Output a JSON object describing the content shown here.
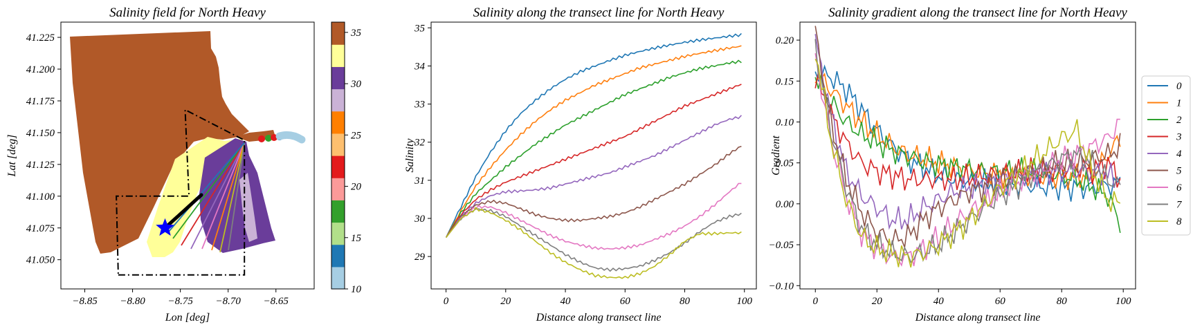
{
  "chart_data": [
    {
      "type": "scatter",
      "title": "Salinity field for North Heavy",
      "xlabel": "Lon [deg]",
      "ylabel": "Lat [deg]",
      "xlim": [
        -8.875,
        -8.61
      ],
      "ylim": [
        41.027,
        41.237
      ],
      "xticks": [
        "−8.85",
        "−8.80",
        "−8.75",
        "−8.70",
        "−8.65"
      ],
      "xtick_values": [
        -8.85,
        -8.8,
        -8.75,
        -8.7,
        -8.65
      ],
      "yticks": [
        "41.050",
        "41.075",
        "41.100",
        "41.125",
        "41.150",
        "41.175",
        "41.200",
        "41.225"
      ],
      "ytick_values": [
        41.05,
        41.075,
        41.1,
        41.125,
        41.15,
        41.175,
        41.2,
        41.225
      ],
      "colorbar": {
        "range": [
          10,
          36
        ],
        "ticks": [
          "10",
          "15",
          "20",
          "25",
          "30",
          "35"
        ],
        "tick_values": [
          10,
          15,
          20,
          25,
          30,
          35
        ],
        "colors": [
          "#a6cee3",
          "#1f78b4",
          "#b2df8a",
          "#33a02c",
          "#fb9a99",
          "#e31a1c",
          "#fdbf6f",
          "#ff7f00",
          "#cab2d6",
          "#6a3d9a",
          "#ffff99",
          "#b15928"
        ]
      },
      "boundary_polygon": [
        [
          -8.815,
          41.038
        ],
        [
          -8.683,
          41.038
        ],
        [
          -8.683,
          41.144
        ],
        [
          -8.745,
          41.168
        ],
        [
          -8.741,
          41.1
        ],
        [
          -8.817,
          41.1
        ]
      ],
      "marker": {
        "lon": -8.766,
        "lat": 41.075,
        "symbol": "star",
        "color": "#0000ff"
      },
      "transect_line": {
        "from": [
          -8.766,
          41.075
        ],
        "to": [
          -8.728,
          41.101
        ]
      },
      "grid": false
    },
    {
      "type": "line",
      "title": "Salinity along the transect line for North Heavy",
      "xlabel": "Distance along transect line",
      "ylabel": "Salinity",
      "xlim": [
        -5,
        104
      ],
      "ylim": [
        28.15,
        35.15
      ],
      "xticks": [
        "0",
        "20",
        "40",
        "60",
        "80",
        "100"
      ],
      "xtick_values": [
        0,
        20,
        40,
        60,
        80,
        100
      ],
      "yticks": [
        "29",
        "30",
        "31",
        "32",
        "33",
        "34",
        "35"
      ],
      "ytick_values": [
        29,
        30,
        31,
        32,
        33,
        34,
        35
      ],
      "grid": false,
      "x": [
        0,
        5,
        10,
        15,
        20,
        25,
        30,
        35,
        40,
        45,
        50,
        55,
        60,
        65,
        70,
        75,
        80,
        85,
        90,
        95,
        99
      ],
      "series": [
        {
          "name": "0",
          "color": "#1f77b4",
          "values": [
            29.5,
            30.3,
            31.1,
            31.75,
            32.3,
            32.75,
            33.1,
            33.4,
            33.65,
            33.85,
            34.0,
            34.15,
            34.28,
            34.38,
            34.47,
            34.55,
            34.62,
            34.68,
            34.73,
            34.78,
            34.82
          ]
        },
        {
          "name": "1",
          "color": "#ff7f0e",
          "values": [
            29.5,
            30.2,
            30.85,
            31.35,
            31.8,
            32.2,
            32.55,
            32.85,
            33.1,
            33.3,
            33.5,
            33.65,
            33.8,
            33.95,
            34.05,
            34.15,
            34.25,
            34.33,
            34.4,
            34.47,
            34.52
          ]
        },
        {
          "name": "2",
          "color": "#2ca02c",
          "values": [
            29.5,
            30.15,
            30.65,
            31.0,
            31.35,
            31.65,
            31.95,
            32.2,
            32.45,
            32.65,
            32.85,
            33.05,
            33.25,
            33.4,
            33.55,
            33.7,
            33.82,
            33.93,
            34.0,
            34.08,
            34.12
          ]
        },
        {
          "name": "3",
          "color": "#d62728",
          "values": [
            29.5,
            30.1,
            30.5,
            30.75,
            30.95,
            31.1,
            31.25,
            31.4,
            31.55,
            31.7,
            31.85,
            32.0,
            32.15,
            32.35,
            32.55,
            32.75,
            32.95,
            33.1,
            33.25,
            33.4,
            33.52
          ]
        },
        {
          "name": "4",
          "color": "#9467bd",
          "values": [
            29.5,
            30.05,
            30.4,
            30.6,
            30.7,
            30.72,
            30.75,
            30.8,
            30.9,
            31.0,
            31.1,
            31.2,
            31.35,
            31.5,
            31.65,
            31.85,
            32.05,
            32.25,
            32.45,
            32.6,
            32.67
          ]
        },
        {
          "name": "5",
          "color": "#8c564b",
          "values": [
            29.5,
            30.05,
            30.35,
            30.45,
            30.4,
            30.25,
            30.1,
            30.0,
            29.95,
            29.95,
            30.0,
            30.05,
            30.15,
            30.3,
            30.5,
            30.7,
            30.9,
            31.15,
            31.4,
            31.7,
            31.9
          ]
        },
        {
          "name": "6",
          "color": "#e377c2",
          "values": [
            29.5,
            30.0,
            30.3,
            30.3,
            30.15,
            29.95,
            29.75,
            29.55,
            29.4,
            29.3,
            29.22,
            29.2,
            29.23,
            29.3,
            29.45,
            29.6,
            29.8,
            30.05,
            30.35,
            30.7,
            30.95
          ]
        },
        {
          "name": "7",
          "color": "#7f7f7f",
          "values": [
            29.5,
            30.0,
            30.25,
            30.2,
            30.05,
            29.8,
            29.55,
            29.3,
            29.05,
            28.85,
            28.7,
            28.65,
            28.68,
            28.75,
            28.9,
            29.1,
            29.35,
            29.65,
            29.9,
            30.05,
            30.12
          ]
        },
        {
          "name": "8",
          "color": "#bcbd22",
          "values": [
            29.5,
            30.0,
            30.25,
            30.15,
            29.95,
            29.7,
            29.4,
            29.1,
            28.85,
            28.65,
            28.5,
            28.45,
            28.45,
            28.55,
            28.75,
            29.05,
            29.4,
            29.6,
            29.6,
            29.62,
            29.62
          ]
        }
      ]
    },
    {
      "type": "line",
      "title": "Salinity gradient along the transect line for North Heavy",
      "xlabel": "Distance along transect line",
      "ylabel": "Gradient",
      "xlim": [
        -5,
        104
      ],
      "ylim": [
        -0.104,
        0.222
      ],
      "xticks": [
        "0",
        "20",
        "40",
        "60",
        "80",
        "100"
      ],
      "xtick_values": [
        0,
        20,
        40,
        60,
        80,
        100
      ],
      "yticks": [
        "−0.10",
        "−0.05",
        "0.00",
        "0.05",
        "0.10",
        "0.15",
        "0.20"
      ],
      "ytick_values": [
        -0.1,
        -0.05,
        0.0,
        0.05,
        0.1,
        0.15,
        0.2
      ],
      "grid": false,
      "legend": {
        "placement": "outside-right",
        "entries": [
          "0",
          "1",
          "2",
          "3",
          "4",
          "5",
          "6",
          "7",
          "8"
        ]
      },
      "x": [
        0,
        5,
        10,
        15,
        20,
        25,
        30,
        35,
        40,
        45,
        50,
        55,
        60,
        65,
        70,
        75,
        80,
        85,
        90,
        95,
        99
      ],
      "series": [
        {
          "name": "0",
          "color": "#1f77b4",
          "values": [
            0.16,
            0.155,
            0.14,
            0.115,
            0.09,
            0.07,
            0.055,
            0.045,
            0.035,
            0.03,
            0.028,
            0.026,
            0.024,
            0.023,
            0.022,
            0.021,
            0.02,
            0.02,
            0.02,
            0.022,
            0.025
          ]
        },
        {
          "name": "1",
          "color": "#ff7f0e",
          "values": [
            0.16,
            0.14,
            0.12,
            0.1,
            0.085,
            0.07,
            0.06,
            0.055,
            0.05,
            0.045,
            0.04,
            0.038,
            0.036,
            0.035,
            0.034,
            0.033,
            0.033,
            0.034,
            0.035,
            0.06,
            0.08
          ]
        },
        {
          "name": "2",
          "color": "#2ca02c",
          "values": [
            0.155,
            0.125,
            0.1,
            0.085,
            0.075,
            0.065,
            0.058,
            0.052,
            0.048,
            0.045,
            0.042,
            0.04,
            0.04,
            0.04,
            0.04,
            0.038,
            0.035,
            0.03,
            0.02,
            0.01,
            -0.025
          ]
        },
        {
          "name": "3",
          "color": "#d62728",
          "values": [
            0.155,
            0.11,
            0.075,
            0.05,
            0.04,
            0.035,
            0.03,
            0.03,
            0.03,
            0.03,
            0.032,
            0.034,
            0.036,
            0.038,
            0.04,
            0.04,
            0.042,
            0.045,
            0.04,
            0.05,
            0.03
          ]
        },
        {
          "name": "4",
          "color": "#9467bd",
          "values": [
            0.2,
            0.11,
            0.04,
            0.01,
            -0.005,
            -0.02,
            -0.02,
            -0.005,
            0.005,
            0.015,
            0.02,
            0.025,
            0.03,
            0.033,
            0.036,
            0.04,
            0.04,
            0.04,
            0.04,
            0.035,
            0.03
          ]
        },
        {
          "name": "5",
          "color": "#8c564b",
          "values": [
            0.21,
            0.1,
            0.03,
            -0.01,
            -0.035,
            -0.045,
            -0.04,
            -0.02,
            -0.005,
            0.005,
            0.015,
            0.02,
            0.028,
            0.035,
            0.04,
            0.045,
            0.05,
            0.05,
            0.055,
            0.06,
            0.07
          ]
        },
        {
          "name": "6",
          "color": "#e377c2",
          "values": [
            0.18,
            0.08,
            0.01,
            -0.035,
            -0.055,
            -0.065,
            -0.065,
            -0.055,
            -0.04,
            -0.025,
            -0.01,
            0.0,
            0.015,
            0.025,
            0.035,
            0.045,
            0.055,
            0.06,
            0.07,
            0.08,
            0.1
          ]
        },
        {
          "name": "7",
          "color": "#7f7f7f",
          "values": [
            0.19,
            0.09,
            0.02,
            -0.03,
            -0.05,
            -0.06,
            -0.065,
            -0.06,
            -0.05,
            -0.035,
            -0.02,
            -0.005,
            0.01,
            0.02,
            0.035,
            0.045,
            0.055,
            0.06,
            0.05,
            0.03,
            0.02
          ]
        },
        {
          "name": "8",
          "color": "#bcbd22",
          "values": [
            0.19,
            0.08,
            0.005,
            -0.04,
            -0.055,
            -0.06,
            -0.065,
            -0.06,
            -0.05,
            -0.035,
            -0.02,
            0.0,
            0.02,
            0.035,
            0.05,
            0.065,
            0.08,
            0.09,
            0.04,
            0.005,
            0.0
          ]
        }
      ]
    }
  ]
}
